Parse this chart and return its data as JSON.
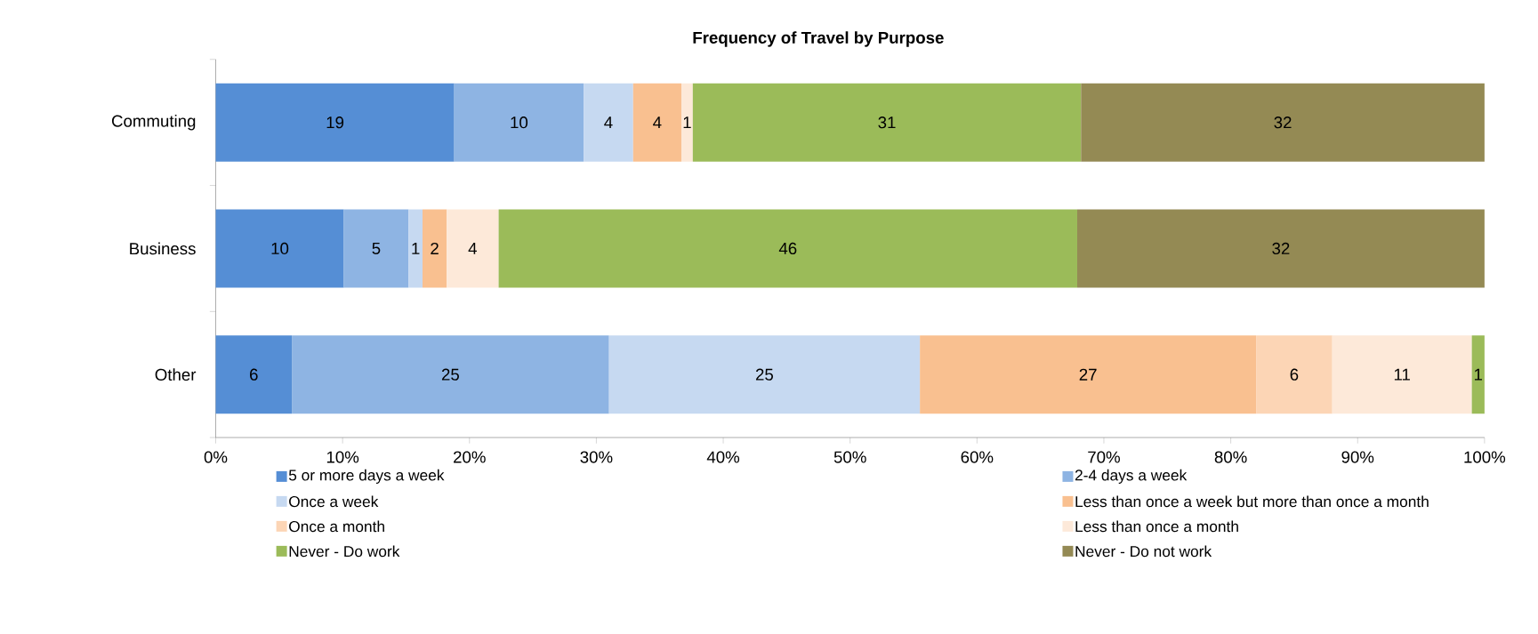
{
  "chart_data": {
    "type": "bar",
    "orientation": "horizontal",
    "stacked": true,
    "title": "Frequency of Travel by Purpose",
    "categories": [
      "Commuting",
      "Business",
      "Other"
    ],
    "series": [
      {
        "name": "5 or more days a week",
        "color": "#558ed5",
        "values": [
          18.8,
          10.1,
          6.0
        ],
        "value_labels": [
          "19",
          "10",
          "6"
        ]
      },
      {
        "name": "2-4 days a week",
        "color": "#8eb4e3",
        "values": [
          10.2,
          5.1,
          25.0
        ],
        "value_labels": [
          "10",
          "5",
          "25"
        ]
      },
      {
        "name": "Once a week",
        "color": "#c6d9f1",
        "values": [
          3.9,
          1.1,
          24.5
        ],
        "value_labels": [
          "4",
          "1",
          "25"
        ]
      },
      {
        "name": "Less than once a week but more than once a month",
        "color": "#f9c090",
        "values": [
          3.8,
          1.9,
          26.5
        ],
        "value_labels": [
          "4",
          "2",
          "27"
        ]
      },
      {
        "name": "Once a month",
        "color": "#fcd5b5",
        "values": [
          null,
          null,
          6.0
        ],
        "value_labels": [
          null,
          null,
          "6"
        ]
      },
      {
        "name": "Less than once a month",
        "color": "#fde9d9",
        "values": [
          0.9,
          4.1,
          11.0
        ],
        "value_labels": [
          "1",
          "4",
          "11"
        ]
      },
      {
        "name": "Never - Do work",
        "color": "#9bbb59",
        "values": [
          30.6,
          45.6,
          1.0
        ],
        "value_labels": [
          "31",
          "46",
          "1"
        ]
      },
      {
        "name": "Never - Do not work",
        "color": "#948a54",
        "values": [
          31.8,
          32.1,
          null
        ],
        "value_labels": [
          "32",
          "32",
          null
        ]
      }
    ],
    "xlim": [
      0,
      100
    ],
    "xticks": [
      {
        "value": 0,
        "label": "0%"
      },
      {
        "value": 10,
        "label": "10%"
      },
      {
        "value": 20,
        "label": "20%"
      },
      {
        "value": 30,
        "label": "30%"
      },
      {
        "value": 40,
        "label": "40%"
      },
      {
        "value": 50,
        "label": "50%"
      },
      {
        "value": 60,
        "label": "60%"
      },
      {
        "value": 70,
        "label": "70%"
      },
      {
        "value": 80,
        "label": "80%"
      },
      {
        "value": 90,
        "label": "90%"
      },
      {
        "value": 100,
        "label": "100%"
      }
    ],
    "legend": "bottom"
  }
}
